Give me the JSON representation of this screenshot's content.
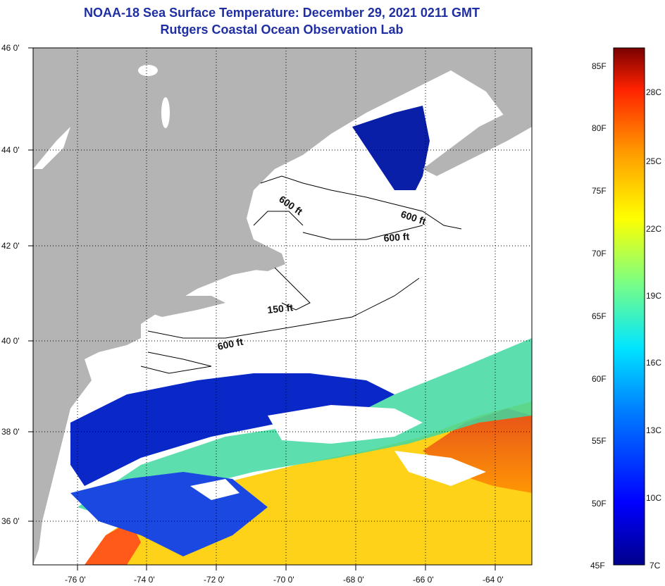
{
  "header": {
    "title_line1": "NOAA-18 Sea Surface Temperature:  December 29, 2021 0211 GMT",
    "title_line2": "Rutgers Coastal Ocean Observation Lab"
  },
  "axes": {
    "lat_labels": [
      "46 0'",
      "44 0'",
      "42 0'",
      "40 0'",
      "38 0'",
      "36 0'"
    ],
    "lon_labels": [
      "-76 0'",
      "-74 0'",
      "-72 0'",
      "-70 0'",
      "-68 0'",
      "-66 0'",
      "-64 0'"
    ]
  },
  "contours": {
    "label_600a": "600 ft",
    "label_600b": "600 ft",
    "label_600c": "600 ft",
    "label_150": "150 ft",
    "label_600d": "600 ft"
  },
  "colorbar": {
    "fahrenheit": [
      "85F",
      "80F",
      "75F",
      "70F",
      "65F",
      "60F",
      "55F",
      "50F",
      "45F"
    ],
    "celsius": [
      "28C",
      "25C",
      "22C",
      "19C",
      "16C",
      "13C",
      "10C",
      "7C"
    ]
  },
  "colors": {
    "land": "#b4b4b4",
    "cloud": "#ffffff",
    "title": "#1f2fa3"
  }
}
